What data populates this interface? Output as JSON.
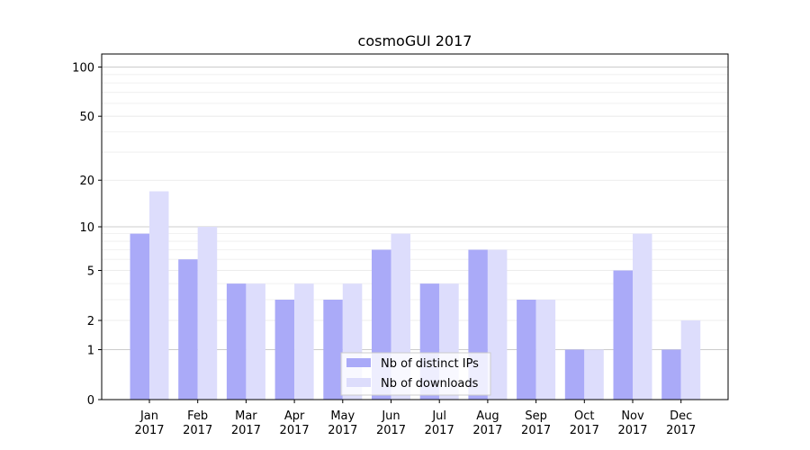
{
  "chart_data": {
    "type": "bar",
    "title": "cosmoGUI 2017",
    "xlabel": "",
    "ylabel": "",
    "y_scale": "log(1+y)",
    "ylim": [
      0,
      120
    ],
    "y_ticks": [
      0,
      1,
      2,
      5,
      10,
      20,
      50,
      100
    ],
    "grid": true,
    "legend_position": "bottom-center",
    "categories": [
      [
        "Jan",
        "2017"
      ],
      [
        "Feb",
        "2017"
      ],
      [
        "Mar",
        "2017"
      ],
      [
        "Apr",
        "2017"
      ],
      [
        "May",
        "2017"
      ],
      [
        "Jun",
        "2017"
      ],
      [
        "Jul",
        "2017"
      ],
      [
        "Aug",
        "2017"
      ],
      [
        "Sep",
        "2017"
      ],
      [
        "Oct",
        "2017"
      ],
      [
        "Nov",
        "2017"
      ],
      [
        "Dec",
        "2017"
      ]
    ],
    "series": [
      {
        "name": "Nb of distinct IPs",
        "color": "#aaaaf8",
        "values": [
          9,
          6,
          4,
          3,
          3,
          7,
          4,
          7,
          3,
          1,
          5,
          1
        ]
      },
      {
        "name": "Nb of downloads",
        "color": "#ddddfc",
        "values": [
          17,
          10,
          4,
          4,
          4,
          9,
          4,
          7,
          3,
          1,
          9,
          2
        ]
      }
    ]
  }
}
